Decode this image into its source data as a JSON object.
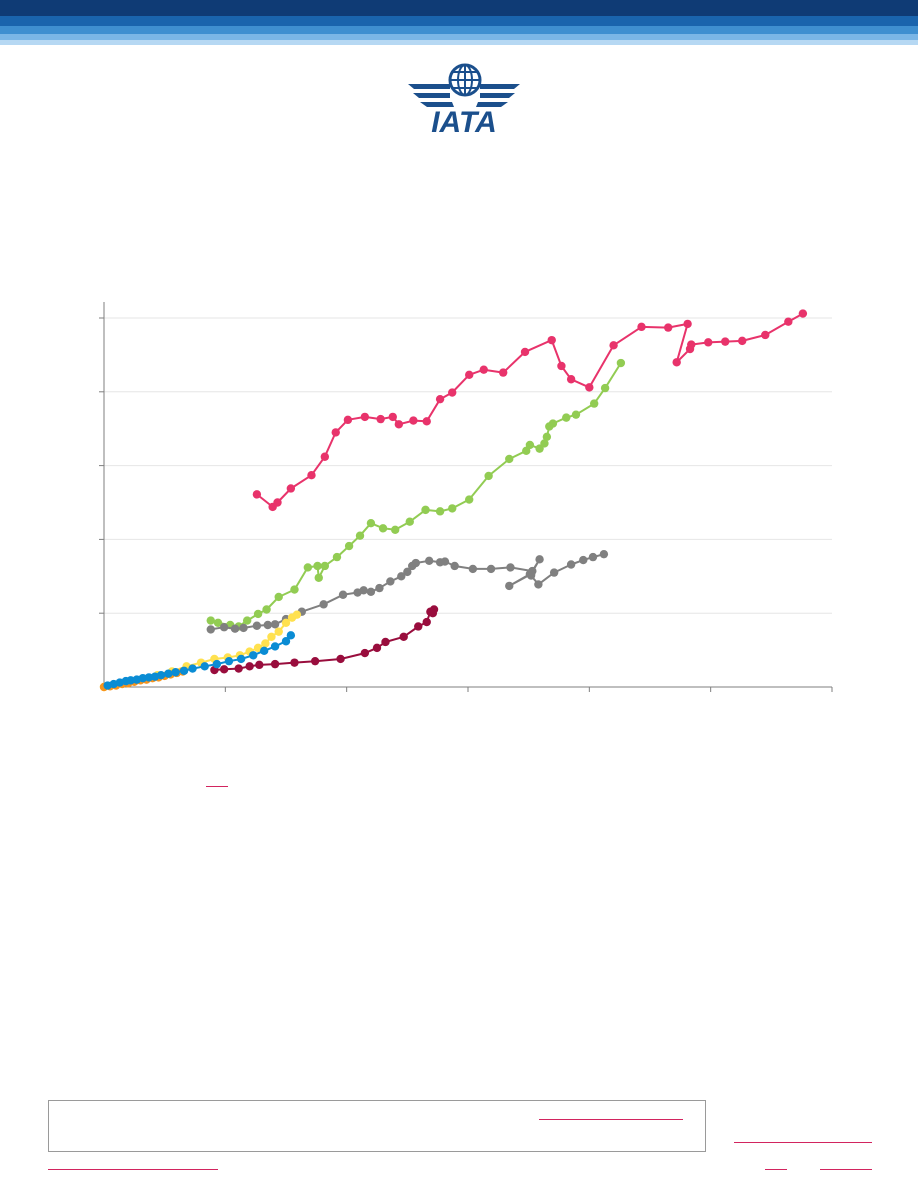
{
  "logo": {
    "text": "IATA",
    "color": "#1b4f8c"
  },
  "colors": {
    "banner": "#0f3b75",
    "axis": "#7f7f7f",
    "grid": "#e6e6e6",
    "link": "#d2245f"
  },
  "chart_data": {
    "type": "line",
    "title": "",
    "xlabel": "",
    "ylabel": "",
    "xlim": [
      0,
      6
    ],
    "ylim": [
      0,
      5
    ],
    "grid": true,
    "x_ticks": 6,
    "y_ticks": 5,
    "series": [
      {
        "color": "#e8336b",
        "x": [
          1.26,
          1.39,
          1.43,
          1.54,
          1.71,
          1.82,
          1.91,
          2.01,
          2.15,
          2.28,
          2.38,
          2.43,
          2.55,
          2.66,
          2.77,
          2.87,
          3.01,
          3.13,
          3.29,
          3.47,
          3.69,
          3.77,
          3.85,
          4.0,
          4.2,
          4.43,
          4.65,
          4.81,
          4.72,
          4.83,
          4.84,
          4.98,
          5.12,
          5.26,
          5.45,
          5.64,
          5.76
        ],
        "y": [
          2.61,
          2.44,
          2.5,
          2.69,
          2.87,
          3.12,
          3.45,
          3.62,
          3.66,
          3.63,
          3.66,
          3.56,
          3.61,
          3.6,
          3.9,
          3.99,
          4.23,
          4.3,
          4.26,
          4.54,
          4.7,
          4.35,
          4.17,
          4.06,
          4.63,
          4.88,
          4.87,
          4.92,
          4.4,
          4.58,
          4.64,
          4.67,
          4.68,
          4.69,
          4.77,
          4.95,
          5.06
        ]
      },
      {
        "color": "#92cc53",
        "x": [
          0.88,
          0.94,
          1.04,
          1.11,
          1.18,
          1.27,
          1.34,
          1.44,
          1.57,
          1.68,
          1.76,
          1.77,
          1.82,
          1.92,
          2.02,
          2.11,
          2.2,
          2.3,
          2.4,
          2.52,
          2.65,
          2.77,
          2.87,
          3.01,
          3.17,
          3.34,
          3.48,
          3.51,
          3.59,
          3.63,
          3.65,
          3.67,
          3.7,
          3.81,
          3.89,
          4.04,
          4.13,
          4.26
        ],
        "y": [
          0.9,
          0.87,
          0.84,
          0.82,
          0.9,
          0.99,
          1.05,
          1.22,
          1.32,
          1.62,
          1.64,
          1.48,
          1.64,
          1.76,
          1.91,
          2.05,
          2.22,
          2.15,
          2.13,
          2.24,
          2.4,
          2.38,
          2.42,
          2.54,
          2.86,
          3.09,
          3.2,
          3.28,
          3.23,
          3.3,
          3.39,
          3.53,
          3.57,
          3.65,
          3.69,
          3.84,
          4.05,
          4.39
        ]
      },
      {
        "color": "#808080",
        "x": [
          0.88,
          0.99,
          1.08,
          1.15,
          1.26,
          1.35,
          1.41,
          1.5,
          1.63,
          1.81,
          1.97,
          2.09,
          2.14,
          2.2,
          2.27,
          2.36,
          2.45,
          2.5,
          2.54,
          2.57,
          2.68,
          2.77,
          2.81,
          2.89,
          3.04,
          3.19,
          3.35,
          3.53,
          3.59,
          3.52,
          3.34,
          3.51,
          3.52,
          3.58,
          3.71,
          3.85,
          3.95,
          4.03,
          4.12
        ],
        "y": [
          0.78,
          0.81,
          0.79,
          0.8,
          0.83,
          0.84,
          0.85,
          0.92,
          1.02,
          1.12,
          1.25,
          1.28,
          1.31,
          1.29,
          1.34,
          1.43,
          1.5,
          1.56,
          1.64,
          1.68,
          1.71,
          1.69,
          1.7,
          1.64,
          1.6,
          1.6,
          1.62,
          1.57,
          1.73,
          1.53,
          1.37,
          1.53,
          1.51,
          1.39,
          1.55,
          1.66,
          1.72,
          1.76,
          1.8
        ]
      },
      {
        "color": "#990d3d",
        "x": [
          0.91,
          0.99,
          1.11,
          1.2,
          1.28,
          1.41,
          1.57,
          1.74,
          1.95,
          2.15,
          2.25,
          2.32,
          2.47,
          2.59,
          2.66,
          2.69,
          2.72,
          2.71
        ],
        "y": [
          0.23,
          0.24,
          0.25,
          0.28,
          0.3,
          0.31,
          0.33,
          0.35,
          0.38,
          0.46,
          0.53,
          0.61,
          0.68,
          0.82,
          0.88,
          1.02,
          1.05,
          1.0
        ]
      },
      {
        "color": "#ffe14f",
        "x": [
          0.0,
          0.1,
          0.2,
          0.32,
          0.44,
          0.56,
          0.68,
          0.8,
          0.91,
          1.02,
          1.12,
          1.2,
          1.27,
          1.33,
          1.38,
          1.44,
          1.5,
          1.55,
          1.59
        ],
        "y": [
          0.0,
          0.03,
          0.07,
          0.11,
          0.16,
          0.21,
          0.28,
          0.33,
          0.38,
          0.4,
          0.43,
          0.48,
          0.53,
          0.59,
          0.68,
          0.75,
          0.87,
          0.94,
          0.98
        ]
      },
      {
        "color": "#f7941d",
        "x": [
          0.0,
          0.05,
          0.1,
          0.15,
          0.2,
          0.25,
          0.3,
          0.35,
          0.4,
          0.45,
          0.5,
          0.55,
          0.6,
          0.65
        ],
        "y": [
          0.0,
          0.01,
          0.02,
          0.04,
          0.05,
          0.07,
          0.09,
          0.1,
          0.12,
          0.13,
          0.15,
          0.17,
          0.19,
          0.21
        ]
      },
      {
        "color": "#0a8cd4",
        "x": [
          0.03,
          0.08,
          0.13,
          0.18,
          0.22,
          0.27,
          0.32,
          0.37,
          0.42,
          0.47,
          0.53,
          0.59,
          0.66,
          0.73,
          0.83,
          0.93,
          1.03,
          1.13,
          1.23,
          1.32,
          1.41,
          1.5,
          1.54
        ],
        "y": [
          0.02,
          0.04,
          0.06,
          0.08,
          0.09,
          0.1,
          0.12,
          0.13,
          0.14,
          0.16,
          0.18,
          0.2,
          0.22,
          0.25,
          0.28,
          0.31,
          0.35,
          0.38,
          0.43,
          0.49,
          0.55,
          0.62,
          0.7
        ]
      }
    ]
  }
}
